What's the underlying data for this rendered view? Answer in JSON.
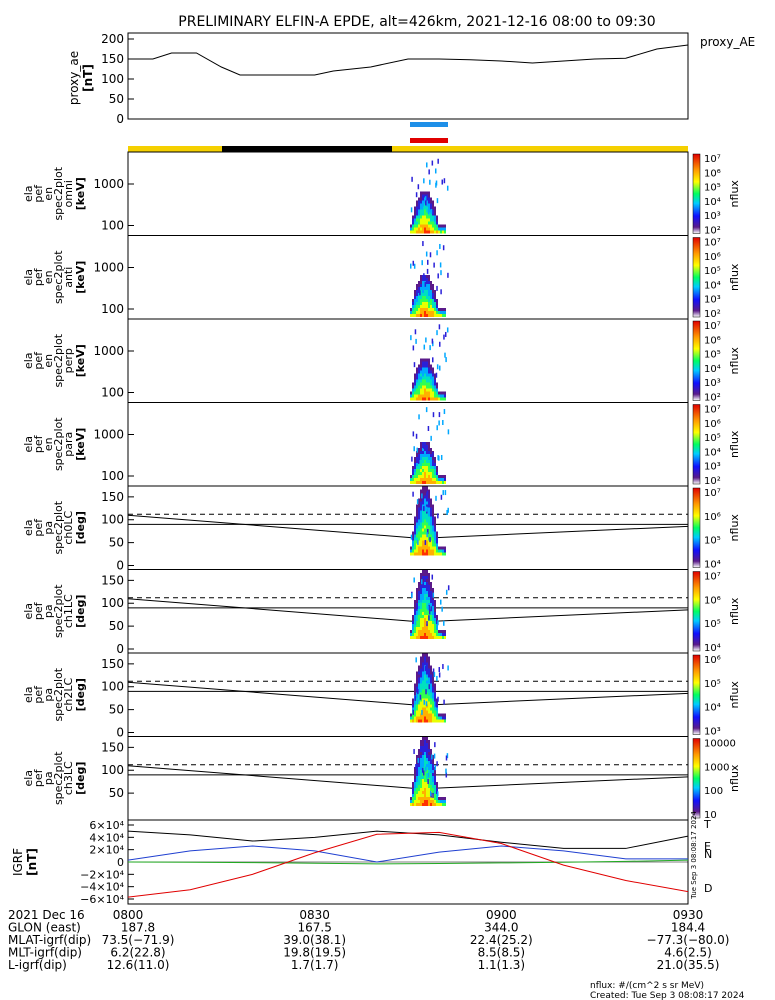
{
  "title": "PRELIMINARY ELFIN-A EPDE, alt=426km, 2021-12-16 08:00 to 09:30",
  "proxy_ae": {
    "ylabel": "proxy_ae",
    "yunit": "[nT]",
    "series_name": "proxy_AE",
    "ylim": [
      0,
      200
    ],
    "yticks": [
      "0",
      "50",
      "100",
      "150",
      "200"
    ],
    "chart_data": {
      "type": "line",
      "x_minutes_label": "time",
      "x": [
        "08:00",
        "08:04",
        "08:07",
        "08:11",
        "08:15",
        "08:18",
        "08:24",
        "08:30",
        "08:33",
        "08:39",
        "08:45",
        "08:50",
        "08:55",
        "09:00",
        "09:05",
        "09:10",
        "09:15",
        "09:20",
        "09:25",
        "09:30"
      ],
      "values": [
        150,
        150,
        165,
        165,
        130,
        110,
        110,
        110,
        120,
        130,
        150,
        150,
        148,
        145,
        140,
        145,
        150,
        152,
        175,
        185
      ]
    }
  },
  "flags": {
    "bar_top_color": "#1e8fe8",
    "bar_bottom_color": "#e00000",
    "status_color_yellow": "#f5d000",
    "status_color_black": "#000000"
  },
  "panels": [
    {
      "label_lines": [
        "ela",
        "pef",
        "en",
        "spec2plot",
        "omni"
      ],
      "unit": "[keV]",
      "yticks": [
        "100",
        "1000"
      ],
      "cbar_ticks": [
        "10²",
        "10³",
        "10⁴",
        "10⁵",
        "10⁶",
        "10⁷"
      ],
      "cbar_label": "nflux",
      "type": "energy"
    },
    {
      "label_lines": [
        "ela",
        "pef",
        "en",
        "spec2plot",
        "anti"
      ],
      "unit": "[keV]",
      "yticks": [
        "100",
        "1000"
      ],
      "cbar_ticks": [
        "10²",
        "10³",
        "10⁴",
        "10⁵",
        "10⁶",
        "10⁷"
      ],
      "cbar_label": "nflux",
      "type": "energy"
    },
    {
      "label_lines": [
        "ela",
        "pef",
        "en",
        "spec2plot",
        "perp"
      ],
      "unit": "[keV]",
      "yticks": [
        "100",
        "1000"
      ],
      "cbar_ticks": [
        "10²",
        "10³",
        "10⁴",
        "10⁵",
        "10⁶",
        "10⁷"
      ],
      "cbar_label": "nflux",
      "type": "energy"
    },
    {
      "label_lines": [
        "ela",
        "pef",
        "en",
        "spec2plot",
        "para"
      ],
      "unit": "[keV]",
      "yticks": [
        "100",
        "1000"
      ],
      "cbar_ticks": [
        "10²",
        "10³",
        "10⁴",
        "10⁵",
        "10⁶",
        "10⁷"
      ],
      "cbar_label": "nflux",
      "type": "energy"
    },
    {
      "label_lines": [
        "ela",
        "pef",
        "pa",
        "spec2plot",
        "ch0LC"
      ],
      "unit": "[deg]",
      "yticks": [
        "0",
        "50",
        "100",
        "150"
      ],
      "cbar_ticks": [
        "10⁴",
        "10⁵",
        "10⁶",
        "10⁷"
      ],
      "cbar_label": "nflux",
      "type": "pa"
    },
    {
      "label_lines": [
        "ela",
        "pef",
        "pa",
        "spec2plot",
        "ch1LC"
      ],
      "unit": "[deg]",
      "yticks": [
        "0",
        "50",
        "100",
        "150"
      ],
      "cbar_ticks": [
        "10⁴",
        "10⁵",
        "10⁶",
        "10⁷"
      ],
      "cbar_label": "nflux",
      "type": "pa"
    },
    {
      "label_lines": [
        "ela",
        "pef",
        "pa",
        "spec2plot",
        "ch2LC"
      ],
      "unit": "[deg]",
      "yticks": [
        "0",
        "50",
        "100",
        "150"
      ],
      "cbar_ticks": [
        "10³",
        "10⁴",
        "10⁵",
        "10⁶"
      ],
      "cbar_label": "nflux",
      "type": "pa"
    },
    {
      "label_lines": [
        "ela",
        "pef",
        "pa",
        "spec2plot",
        "ch3LC"
      ],
      "unit": "[deg]",
      "yticks": [
        "50",
        "100",
        "150"
      ],
      "cbar_ticks": [
        "10",
        "100",
        "1000",
        "10000"
      ],
      "cbar_label": "nflux",
      "type": "pa"
    }
  ],
  "igrf": {
    "ylabel": "IGRF",
    "yunit": "[nT]",
    "yticks": [
      "6×10⁴",
      "4×10⁴",
      "2×10⁴",
      "0",
      "−2×10⁴",
      "−4×10⁴",
      "−6×10⁴"
    ],
    "legend": [
      {
        "name": "T",
        "color": "#000000"
      },
      {
        "name": "E",
        "color": "#22aa22"
      },
      {
        "name": "N",
        "color": "#1f3fd0"
      },
      {
        "name": "D",
        "color": "#e00000"
      }
    ],
    "chart_data": {
      "type": "line",
      "x": [
        "08:00",
        "08:10",
        "08:20",
        "08:30",
        "08:40",
        "08:50",
        "09:00",
        "09:10",
        "09:20",
        "09:30"
      ],
      "series": [
        {
          "name": "T",
          "values": [
            50000,
            44000,
            34000,
            40000,
            50000,
            44000,
            32000,
            22000,
            22000,
            42000
          ]
        },
        {
          "name": "N",
          "values": [
            3000,
            18000,
            26000,
            18000,
            0,
            16000,
            26000,
            18000,
            5000,
            5000
          ]
        },
        {
          "name": "E",
          "values": [
            0,
            -500,
            -1000,
            -2000,
            -3000,
            -2500,
            -1500,
            -500,
            1000,
            3000
          ]
        },
        {
          "name": "D",
          "values": [
            -57000,
            -45000,
            -20000,
            15000,
            45000,
            48000,
            30000,
            -5000,
            -30000,
            -48000
          ]
        }
      ]
    }
  },
  "side_stamp": "Tue Sep  3 08:08:17 2024",
  "footer": {
    "row_labels": [
      "2021 Dec 16",
      "GLON (east)",
      "MLAT-igrf(dip)",
      "MLT-igrf(dip)",
      "L-igrf(dip)"
    ],
    "columns": [
      {
        "time": "0800",
        "vals": [
          "187.8",
          "73.5(−71.9)",
          "6.2(22.8)",
          "12.6(11.0)"
        ]
      },
      {
        "time": "0830",
        "vals": [
          "167.5",
          "39.0(38.1)",
          "19.8(19.5)",
          "1.7(1.7)"
        ]
      },
      {
        "time": "0900",
        "vals": [
          "344.0",
          "22.4(25.2)",
          "8.5(8.5)",
          "1.1(1.3)"
        ]
      },
      {
        "time": "0930",
        "vals": [
          "184.4",
          "−77.3(−80.0)",
          "4.6(2.5)",
          "21.0(35.5)"
        ]
      }
    ],
    "note1": "nflux: #/(cm^2 s sr MeV)",
    "note2": "Created: Tue Sep  3 08:08:17 2024"
  }
}
